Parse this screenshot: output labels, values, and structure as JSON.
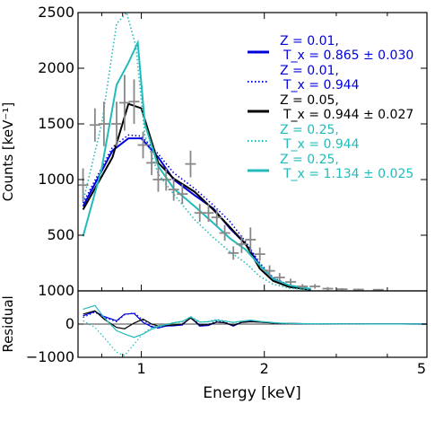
{
  "chart_data": [
    {
      "type": "line",
      "title": "",
      "xlabel": "",
      "ylabel": "Counts [keV⁻¹]",
      "xscale": "log",
      "xlim": [
        0.7,
        5.0
      ],
      "ylim": [
        0,
        2500
      ],
      "yticks": [
        500,
        1000,
        1500,
        2000,
        2500
      ],
      "ytick_labels": [
        "500",
        "1000",
        "1500",
        "2000",
        "2500"
      ],
      "grid": false,
      "legend_position": "top-right",
      "legend": [
        {
          "series": "s1",
          "line1": "Z = 0.01,",
          "line2": "T_x = 0.865 ± 0.030",
          "color": "#0000dd",
          "style": "solid"
        },
        {
          "series": "s2",
          "line1": "Z = 0.01,",
          "line2": "T_x = 0.944",
          "color": "#0000dd",
          "style": "dotted"
        },
        {
          "series": "s3",
          "line1": "Z = 0.05,",
          "line2": "T_x = 0.944 ± 0.027",
          "color": "#000000",
          "style": "solid"
        },
        {
          "series": "s4",
          "line1": "Z = 0.25,",
          "line2": "T_x = 0.944",
          "color": "#22bbbb",
          "style": "dotted"
        },
        {
          "series": "s5",
          "line1": "Z = 0.25,",
          "line2": "T_x = 1.134 ± 0.025",
          "color": "#22bbbb",
          "style": "solid"
        }
      ],
      "data_points": {
        "color": "#888888",
        "points": [
          {
            "x": 0.72,
            "y": 950,
            "yerr": 150
          },
          {
            "x": 0.77,
            "y": 1490,
            "yerr": 150
          },
          {
            "x": 0.81,
            "y": 1500,
            "yerr": 200
          },
          {
            "x": 0.87,
            "y": 1500,
            "yerr": 200
          },
          {
            "x": 0.91,
            "y": 1690,
            "yerr": 250
          },
          {
            "x": 0.96,
            "y": 1700,
            "yerr": 200
          },
          {
            "x": 1.01,
            "y": 1310,
            "yerr": 120
          },
          {
            "x": 1.06,
            "y": 1150,
            "yerr": 110
          },
          {
            "x": 1.1,
            "y": 1000,
            "yerr": 110
          },
          {
            "x": 1.15,
            "y": 1000,
            "yerr": 100
          },
          {
            "x": 1.2,
            "y": 910,
            "yerr": 100
          },
          {
            "x": 1.26,
            "y": 870,
            "yerr": 90
          },
          {
            "x": 1.32,
            "y": 1140,
            "yerr": 120
          },
          {
            "x": 1.39,
            "y": 700,
            "yerr": 80
          },
          {
            "x": 1.46,
            "y": 700,
            "yerr": 80
          },
          {
            "x": 1.53,
            "y": 660,
            "yerr": 80
          },
          {
            "x": 1.6,
            "y": 520,
            "yerr": 70
          },
          {
            "x": 1.68,
            "y": 340,
            "yerr": 60
          },
          {
            "x": 1.76,
            "y": 420,
            "yerr": 80
          },
          {
            "x": 1.85,
            "y": 460,
            "yerr": 110
          },
          {
            "x": 1.95,
            "y": 330,
            "yerr": 60
          },
          {
            "x": 2.06,
            "y": 180,
            "yerr": 50
          },
          {
            "x": 2.18,
            "y": 120,
            "yerr": 40
          },
          {
            "x": 2.32,
            "y": 80,
            "yerr": 30
          },
          {
            "x": 2.48,
            "y": 40,
            "yerr": 20
          },
          {
            "x": 2.66,
            "y": 40,
            "yerr": 20
          },
          {
            "x": 2.86,
            "y": 20,
            "yerr": 15
          },
          {
            "x": 3.1,
            "y": 15,
            "yerr": 10
          },
          {
            "x": 3.4,
            "y": 12,
            "yerr": 8
          },
          {
            "x": 3.8,
            "y": 10,
            "yerr": 8
          }
        ]
      },
      "series": [
        {
          "id": "s1",
          "name": "Z = 0.01, T_x = 0.865 ± 0.030",
          "x": [
            0.72,
            0.85,
            0.93,
            1.0,
            1.1,
            1.2,
            1.35,
            1.5,
            1.65,
            1.8,
            1.95,
            2.1,
            2.3,
            2.6
          ],
          "y": [
            760,
            1260,
            1370,
            1370,
            1200,
            1000,
            860,
            740,
            560,
            420,
            230,
            110,
            45,
            15
          ]
        },
        {
          "id": "s2",
          "name": "Z = 0.01, T_x = 0.944",
          "x": [
            0.72,
            0.85,
            0.93,
            1.0,
            1.1,
            1.2,
            1.35,
            1.5,
            1.65,
            1.8,
            1.95,
            2.1,
            2.3,
            2.6
          ],
          "y": [
            790,
            1290,
            1400,
            1390,
            1230,
            1060,
            920,
            770,
            620,
            440,
            250,
            120,
            50,
            18
          ]
        },
        {
          "id": "s3",
          "name": "Z = 0.05, T_x = 0.944 ± 0.027",
          "x": [
            0.72,
            0.85,
            0.93,
            1.0,
            1.1,
            1.2,
            1.35,
            1.5,
            1.65,
            1.8,
            1.95,
            2.1,
            2.3,
            2.6
          ],
          "y": [
            730,
            1200,
            1680,
            1640,
            1150,
            1010,
            890,
            730,
            570,
            420,
            200,
            90,
            35,
            10
          ]
        },
        {
          "id": "s4",
          "name": "Z = 0.25, T_x = 0.944",
          "x": [
            0.72,
            0.8,
            0.87,
            0.92,
            0.97,
            1.02,
            1.1,
            1.2,
            1.35,
            1.5,
            1.65,
            1.8,
            1.95,
            2.1,
            2.3,
            2.6
          ],
          "y": [
            800,
            1500,
            2400,
            2500,
            2200,
            1400,
            1050,
            870,
            640,
            480,
            350,
            250,
            130,
            60,
            25,
            8
          ]
        },
        {
          "id": "s5",
          "name": "Z = 0.25, T_x = 1.134 ± 0.025",
          "x": [
            0.72,
            0.8,
            0.87,
            0.93,
            0.98,
            1.02,
            1.1,
            1.2,
            1.35,
            1.5,
            1.65,
            1.8,
            1.95,
            2.1,
            2.3,
            2.6
          ],
          "y": [
            490,
            1100,
            1850,
            2050,
            2230,
            1500,
            1120,
            920,
            760,
            610,
            470,
            370,
            230,
            110,
            50,
            18
          ]
        }
      ]
    },
    {
      "type": "line",
      "title": "",
      "xlabel": "Energy [keV]",
      "ylabel": "Residual",
      "xscale": "log",
      "xlim": [
        0.7,
        5.0
      ],
      "ylim": [
        -1000,
        1000
      ],
      "xticks": [
        1,
        2,
        5
      ],
      "xtick_labels": [
        "1",
        "2",
        "5"
      ],
      "yticks": [
        -1000,
        0,
        1000
      ],
      "ytick_labels": [
        "−1000",
        "0",
        "1000"
      ],
      "grid": false,
      "residual_x": [
        0.72,
        0.77,
        0.81,
        0.87,
        0.91,
        0.96,
        1.01,
        1.06,
        1.1,
        1.15,
        1.2,
        1.26,
        1.32,
        1.39,
        1.46,
        1.53,
        1.6,
        1.68,
        1.76,
        1.85,
        1.95,
        2.06,
        2.18,
        2.32,
        2.48,
        2.66,
        2.86,
        3.1,
        3.4,
        3.8,
        4.3,
        5.0
      ],
      "series": [
        {
          "id": "s1",
          "y": [
            250,
            380,
            230,
            100,
            300,
            320,
            50,
            -80,
            -120,
            -60,
            -50,
            -30,
            200,
            -60,
            -40,
            60,
            40,
            -60,
            50,
            80,
            60,
            40,
            20,
            15,
            10,
            8,
            6,
            5,
            4,
            3,
            2,
            0
          ]
        },
        {
          "id": "s2",
          "y": [
            200,
            360,
            200,
            70,
            280,
            340,
            120,
            -60,
            -100,
            -50,
            -40,
            -20,
            230,
            -20,
            0,
            90,
            60,
            -40,
            70,
            100,
            70,
            50,
            25,
            18,
            12,
            9,
            7,
            6,
            5,
            4,
            3,
            0
          ]
        },
        {
          "id": "s3",
          "y": [
            300,
            400,
            150,
            -100,
            -140,
            30,
            150,
            0,
            -60,
            -40,
            -30,
            0,
            180,
            -30,
            -20,
            60,
            40,
            -40,
            50,
            70,
            60,
            40,
            20,
            15,
            10,
            8,
            6,
            5,
            4,
            3,
            2,
            0
          ]
        },
        {
          "id": "s4",
          "y": [
            100,
            -100,
            -400,
            -850,
            -950,
            -600,
            -280,
            -100,
            -60,
            0,
            40,
            60,
            230,
            60,
            80,
            140,
            100,
            40,
            80,
            120,
            80,
            50,
            25,
            18,
            12,
            9,
            7,
            6,
            5,
            4,
            3,
            0
          ]
        },
        {
          "id": "s5",
          "y": [
            450,
            560,
            200,
            -200,
            -300,
            -400,
            -300,
            -150,
            -80,
            -20,
            40,
            80,
            210,
            60,
            70,
            120,
            90,
            50,
            90,
            120,
            80,
            55,
            30,
            20,
            14,
            10,
            8,
            6,
            5,
            4,
            3,
            0
          ]
        }
      ],
      "zero_line": true
    }
  ]
}
